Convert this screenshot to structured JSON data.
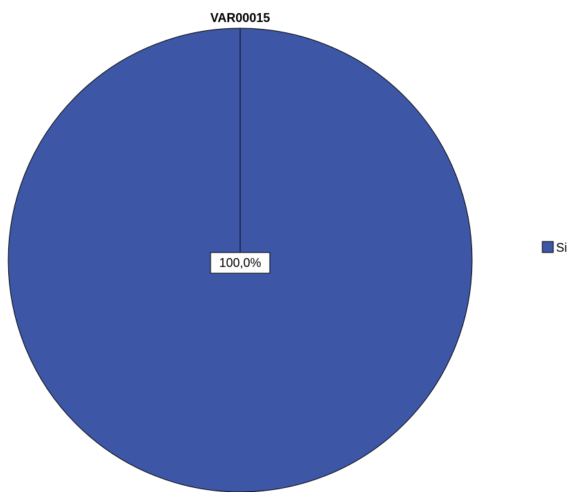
{
  "chart_data": {
    "type": "pie",
    "title": "VAR00015",
    "categories": [
      "Si"
    ],
    "values": [
      100.0
    ],
    "data_labels": [
      "100,0%"
    ],
    "colors": [
      "#3d56a6"
    ],
    "legend_position": "right"
  }
}
